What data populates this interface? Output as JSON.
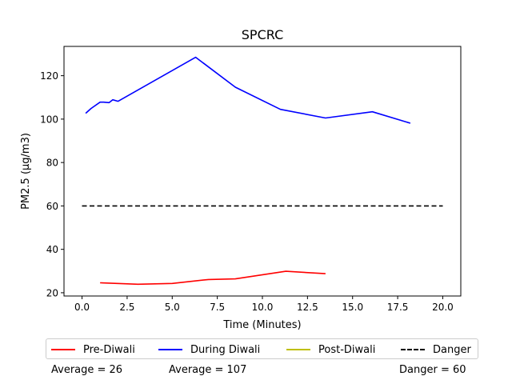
{
  "chart_data": {
    "type": "line",
    "title": "SPCRC",
    "xlabel": "Time (Minutes)",
    "ylabel": "PM2.5 (µg/m3)",
    "xlim": [
      -1.0,
      21.0
    ],
    "ylim": [
      18.5,
      133.5
    ],
    "xticks": [
      0.0,
      2.5,
      5.0,
      7.5,
      10.0,
      12.5,
      15.0,
      17.5,
      20.0
    ],
    "xtick_labels": [
      "0.0",
      "2.5",
      "5.0",
      "7.5",
      "10.0",
      "12.5",
      "15.0",
      "17.5",
      "20.0"
    ],
    "yticks": [
      20,
      40,
      60,
      80,
      100,
      120
    ],
    "ytick_labels": [
      "20",
      "40",
      "60",
      "80",
      "100",
      "120"
    ],
    "grid": false,
    "legend_placement": "bottom",
    "series": [
      {
        "name": "Pre-Diwali",
        "color": "#ff0000",
        "style": "solid",
        "x": [
          1.0,
          3.1,
          5.0,
          7.0,
          8.5,
          11.3,
          13.5
        ],
        "y": [
          24.6,
          23.9,
          24.3,
          26.1,
          26.4,
          29.9,
          28.8
        ]
      },
      {
        "name": "During Diwali",
        "color": "#0000ff",
        "style": "solid",
        "x": [
          0.2,
          0.5,
          1.0,
          1.2,
          1.5,
          1.7,
          2.0,
          6.3,
          8.5,
          11.0,
          13.5,
          16.1,
          18.2
        ],
        "y": [
          102.7,
          104.9,
          107.8,
          107.8,
          107.6,
          108.9,
          108.2,
          128.5,
          114.7,
          104.5,
          100.5,
          103.4,
          98.1
        ]
      },
      {
        "name": "Post-Diwali",
        "color": "#bfbf00",
        "style": "solid",
        "x": [],
        "y": []
      },
      {
        "name": "Danger",
        "color": "#000000",
        "style": "dashed",
        "x": [
          0.0,
          20.0
        ],
        "y": [
          60,
          60
        ]
      }
    ]
  },
  "footnotes": {
    "pre_average": "Average = 26",
    "during_average": "Average = 107",
    "danger": "Danger = 60"
  }
}
